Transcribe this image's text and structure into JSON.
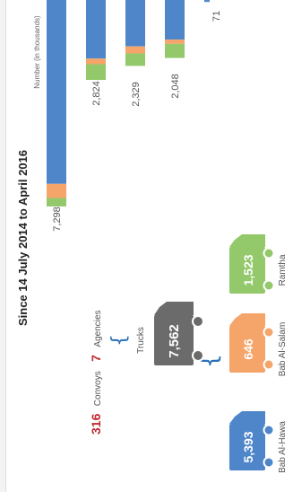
{
  "header": {
    "title": "Since 14 July 2014 to April 2016",
    "convoys_value": "316",
    "convoys_label": "Convoys",
    "agencies_value": "7",
    "agencies_label": "Agencies"
  },
  "trucks": {
    "total_label": "Trucks",
    "total_value": "7,562",
    "crossings": [
      {
        "name": "Bab Al-Hawa",
        "value": "5,393"
      },
      {
        "name": "Bab Al-Salam",
        "value": "646"
      },
      {
        "name": "Ramtha",
        "value": "1,523"
      }
    ]
  },
  "colors": {
    "blue": "#4f86c9",
    "orange": "#f5a46a",
    "green": "#93c86b",
    "gray": "#6b6b6b",
    "red": "#c0282e",
    "text": "#555555"
  },
  "chart_data": {
    "type": "bar",
    "ylabel": "Number (in thousands)",
    "series": [
      {
        "name": "",
        "values": [
          6.5,
          2.07,
          1.64,
          1.4,
          0.07
        ]
      },
      {
        "name": "",
        "values": [
          0.5,
          0.2,
          0.25,
          0.15,
          0
        ]
      },
      {
        "name": "",
        "values": [
          0.298,
          0.554,
          0.439,
          0.498,
          0
        ]
      }
    ],
    "totals": [
      "7,298",
      "2,824",
      "2,329",
      "2,048",
      "71"
    ]
  }
}
